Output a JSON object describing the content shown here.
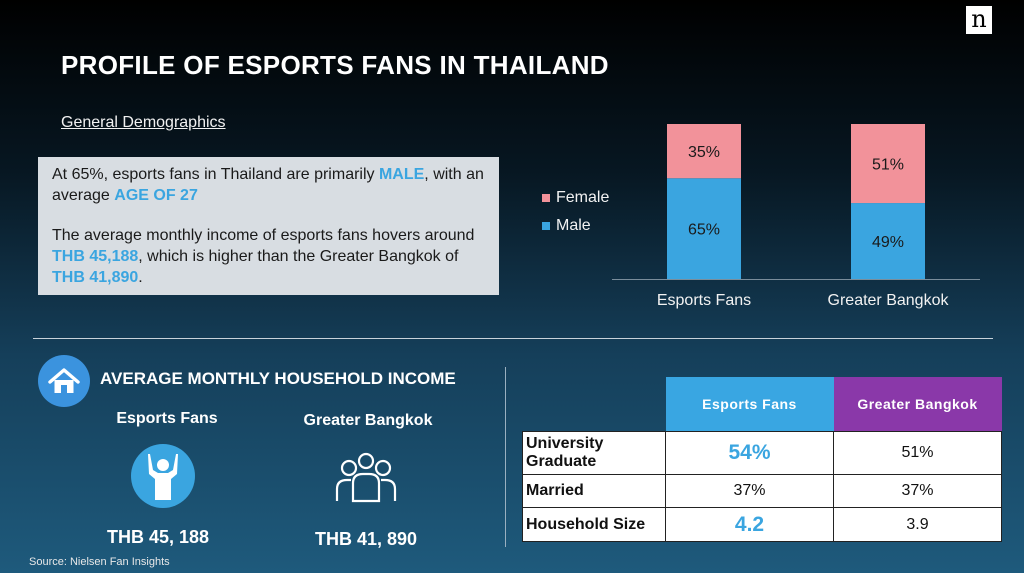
{
  "logo": {
    "letter": "n"
  },
  "title": "PROFILE OF ESPORTS FANS IN THAILAND",
  "subtitle": "General Demographics",
  "summary": {
    "p1_pre": "At 65%, esports fans in Thailand are primarily ",
    "p1_male": "MALE",
    "p1_mid": ", with an average ",
    "p1_age": "AGE OF 27",
    "p2_pre": "The average monthly income of esports fans hovers around ",
    "p2_income1": "THB 45,188",
    "p2_mid": ", which is higher than the Greater Bangkok of ",
    "p2_income2": "THB 41,890",
    "p2_end": "."
  },
  "chart_data": {
    "type": "bar",
    "stacked": true,
    "categories": [
      "Esports Fans",
      "Greater Bangkok"
    ],
    "series": [
      {
        "name": "Male",
        "values": [
          65,
          49
        ],
        "color": "#3aa5e0"
      },
      {
        "name": "Female",
        "values": [
          35,
          51
        ],
        "color": "#f2929a"
      }
    ],
    "data_labels": [
      [
        "65%",
        "49%"
      ],
      [
        "35%",
        "51%"
      ]
    ],
    "legend_position": "left",
    "ylim": [
      0,
      100
    ],
    "grid": false
  },
  "income_section": {
    "title": "AVERAGE MONTHLY HOUSEHOLD INCOME",
    "icon": "house-icon",
    "esports_label": "Esports Fans",
    "esports_icon": "cheering-person-icon",
    "esports_value": "THB 45, 188",
    "bangkok_label": "Greater Bangkok",
    "bangkok_icon": "group-of-people-icon",
    "bangkok_value": "THB 41, 890"
  },
  "table": {
    "headers": [
      "Esports Fans",
      "Greater Bangkok"
    ],
    "header_colors": [
      "#39a6e2",
      "#8a38a9"
    ],
    "rows": [
      {
        "label": "University Graduate",
        "esports": "54%",
        "bangkok": "51%"
      },
      {
        "label": "Married",
        "esports": "37%",
        "bangkok": "37%"
      },
      {
        "label": "Household Size",
        "esports": "4.2",
        "bangkok": "3.9"
      }
    ]
  },
  "source": "Source: Nielsen Fan Insights"
}
